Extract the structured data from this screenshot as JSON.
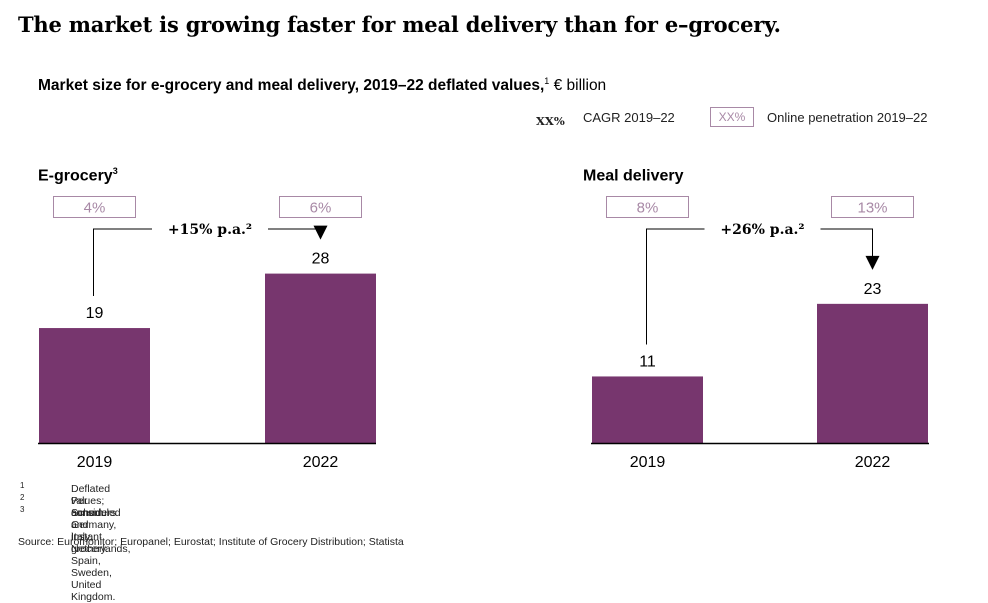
{
  "title": "The market is growing faster for meal delivery than for e–grocery.",
  "subtitle": {
    "bold": "Market size for e-grocery and meal delivery, 2019–22 deflated values,",
    "sup": "1",
    "unit": " € billion"
  },
  "legend": {
    "cagr_marker": "XX%",
    "cagr_label": "CAGR 2019–22",
    "penetration_marker": "XX%",
    "penetration_label": "Online penetration 2019–22"
  },
  "colors": {
    "bar": "#77366e",
    "penetration_box": "#a889a6",
    "axis": "#000000"
  },
  "chart_data": [
    {
      "type": "bar",
      "title": "E-grocery",
      "title_sup": "3",
      "categories": [
        "2019",
        "2022"
      ],
      "values": [
        19,
        28
      ],
      "value_labels": [
        "19",
        "28"
      ],
      "online_penetration": [
        "4%",
        "6%"
      ],
      "cagr_label": "+15% p.a.²",
      "unit": "€ billion",
      "ylim": [
        0,
        30
      ],
      "grid": false
    },
    {
      "type": "bar",
      "title": "Meal delivery",
      "title_sup": "",
      "categories": [
        "2019",
        "2022"
      ],
      "values": [
        11,
        23
      ],
      "value_labels": [
        "11",
        "23"
      ],
      "online_penetration": [
        "8%",
        "13%"
      ],
      "cagr_label": "+26% p.a.²",
      "unit": "€ billion",
      "ylim": [
        0,
        30
      ],
      "grid": false
    }
  ],
  "footnotes": [
    {
      "num": "1",
      "text": "Deflated values; considers Germany, Italy, Netherlands, Spain, Sweden, United Kingdom."
    },
    {
      "num": "2",
      "text": "Per annum."
    },
    {
      "num": "3",
      "text": "Scheduled and instant grocery."
    }
  ],
  "source": "Source: Euromonitor; Europanel; Eurostat; Institute of Grocery Distribution; Statista"
}
